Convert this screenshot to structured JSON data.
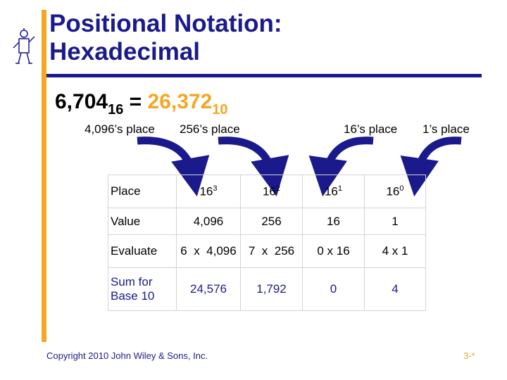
{
  "title_line1": "Positional Notation:",
  "title_line2": "Hexadecimal",
  "equation": {
    "base_number": "6,704",
    "base_sub": "16",
    "equals": " = ",
    "result": "26,372",
    "result_sub": "10"
  },
  "place_labels": [
    "4,096’s place",
    "256’s place",
    "16’s place",
    "1’s place"
  ],
  "table": {
    "rows": [
      {
        "header": "Place",
        "cells": [
          {
            "base": "16",
            "exp": "3"
          },
          {
            "base": "16",
            "exp": "2"
          },
          {
            "base": "16",
            "exp": "1"
          },
          {
            "base": "16",
            "exp": "0"
          }
        ]
      },
      {
        "header": "Value",
        "cells": [
          "4,096",
          "256",
          "16",
          "1"
        ]
      },
      {
        "header": "Evaluate",
        "cells": [
          "6  x  4,096",
          "7  x  256",
          "0 x 16",
          "4 x 1"
        ]
      },
      {
        "header_line1": "Sum for",
        "header_line2": "Base 10",
        "cells": [
          "24,576",
          "1,792",
          "0",
          "4"
        ]
      }
    ]
  },
  "footer": {
    "copyright": "Copyright 2010 John Wiley & Sons, Inc.",
    "page": "3-*"
  },
  "colors": {
    "title": "#1a1a8c",
    "accent": "#f5a623",
    "arrow": "#1a1a8c"
  },
  "icons": {
    "figure": "stick-figure-icon",
    "arrow": "curved-arrow-icon"
  }
}
